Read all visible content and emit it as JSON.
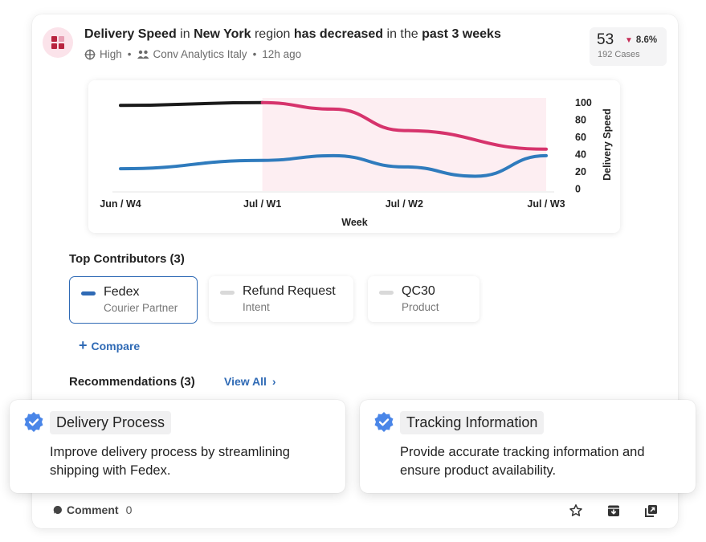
{
  "insight": {
    "title_parts": [
      {
        "text": "Delivery Speed",
        "bold": true
      },
      {
        "text": " in ",
        "bold": false
      },
      {
        "text": "New York",
        "bold": true
      },
      {
        "text": " region ",
        "bold": false
      },
      {
        "text": "has decreased",
        "bold": true
      },
      {
        "text": " in the ",
        "bold": false
      },
      {
        "text": "past 3 weeks",
        "bold": true
      }
    ],
    "priority": "High",
    "team": "Conv Analytics Italy",
    "time": "12h ago"
  },
  "kpi": {
    "value": "53",
    "delta": "8.6%",
    "delta_direction": "down",
    "cases": "192 Cases"
  },
  "chart_data": {
    "type": "line",
    "x": [
      "Jun / W4",
      "Jul / W1",
      "Jul / W2",
      "Jul / W3"
    ],
    "xlabel": "Week",
    "ylabel": "Delivery Speed",
    "ylim": [
      0,
      100
    ],
    "yticks": [
      "100",
      "80",
      "60",
      "40",
      "20",
      "0"
    ],
    "series": [
      {
        "color": "#1a1a1a",
        "x": [
          0,
          1
        ],
        "values": [
          92,
          95
        ]
      },
      {
        "color": "#d6336c",
        "x": [
          1,
          1.5,
          2,
          3
        ],
        "values": [
          95,
          88,
          65,
          45
        ]
      },
      {
        "color": "#2f7bbd",
        "x": [
          0,
          1,
          1.5,
          2,
          2.5,
          3
        ],
        "values": [
          24,
          33,
          38,
          26,
          16,
          38
        ]
      }
    ],
    "highlight_range": [
      1,
      3
    ],
    "highlight_color": "#fdeef2"
  },
  "contributors": {
    "title": "Top Contributors (3)",
    "items": [
      {
        "name": "Fedex",
        "type": "Courier Partner",
        "color": "#2f6ab5",
        "active": true
      },
      {
        "name": "Refund Request",
        "type": "Intent",
        "color": "#d9d9d9",
        "active": false
      },
      {
        "name": "QC30",
        "type": "Product",
        "color": "#d9d9d9",
        "active": false
      }
    ],
    "compare_label": "Compare"
  },
  "recommendations": {
    "title": "Recommendations (3)",
    "view_all": "View All",
    "cards": [
      {
        "title": "Delivery Process",
        "description": "Improve delivery process by streamlining shipping with Fedex."
      },
      {
        "title": "Tracking Information",
        "description": "Provide accurate tracking information and ensure product availability."
      }
    ]
  },
  "footer": {
    "comment_label": "Comment",
    "comment_count": "0"
  },
  "colors": {
    "accent": "#2f6ab5",
    "negative": "#c62d57"
  }
}
